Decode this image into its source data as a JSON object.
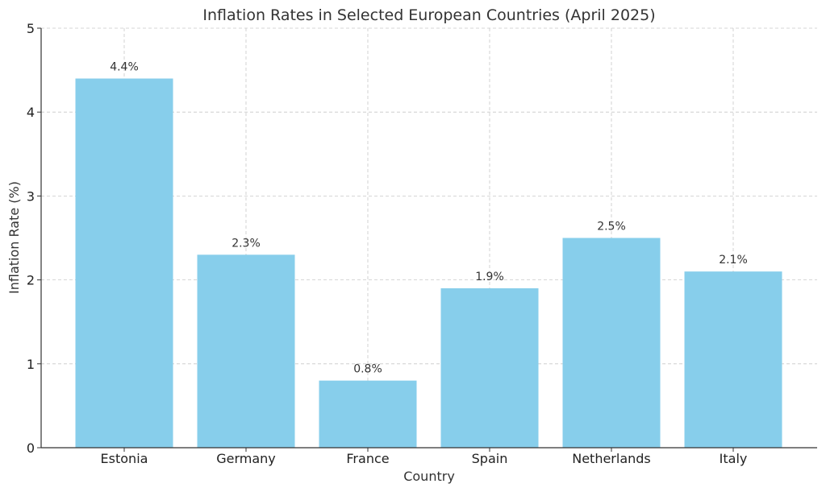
{
  "chart_data": {
    "type": "bar",
    "title": "Inflation Rates in Selected European Countries (April 2025)",
    "xlabel": "Country",
    "ylabel": "Inflation Rate (%)",
    "categories": [
      "Estonia",
      "Germany",
      "France",
      "Spain",
      "Netherlands",
      "Italy"
    ],
    "values": [
      4.4,
      2.3,
      0.8,
      1.9,
      2.5,
      2.1
    ],
    "value_labels": [
      "4.4%",
      "2.3%",
      "0.8%",
      "1.9%",
      "2.5%",
      "2.1%"
    ],
    "ylim": [
      0,
      5
    ],
    "yticks": [
      0,
      1,
      2,
      3,
      4,
      5
    ],
    "grid": true,
    "bar_color": "#87CEEB"
  }
}
